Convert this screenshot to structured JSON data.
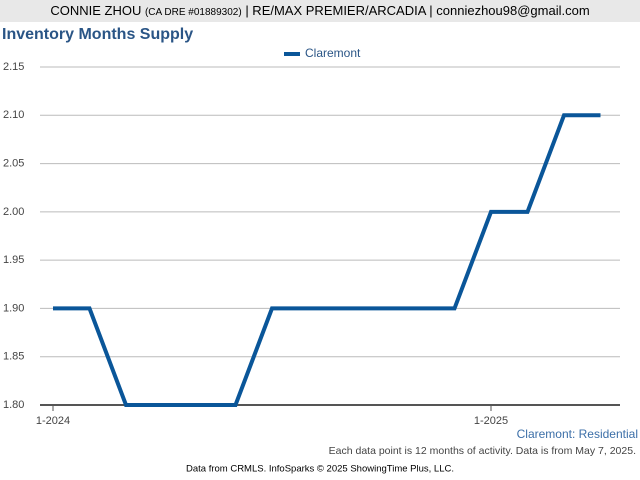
{
  "header": {
    "name": "CONNIE ZHOU",
    "license": "(CA DRE #01889302)",
    "rest": "| RE/MAX PREMIER/ARCADIA | conniezhou98@gmail.com"
  },
  "chart_data": {
    "type": "line",
    "title": "Inventory Months Supply",
    "categories": [
      "1-2024",
      null,
      null,
      null,
      null,
      null,
      null,
      null,
      null,
      null,
      null,
      null,
      "1-2025",
      null,
      null,
      null
    ],
    "series": [
      {
        "name": "Claremont",
        "color": "#0a5699",
        "values": [
          1.9,
          1.9,
          1.8,
          1.8,
          1.8,
          1.8,
          1.9,
          1.9,
          1.9,
          1.9,
          1.9,
          1.9,
          2.0,
          2.0,
          2.1,
          2.1
        ]
      }
    ],
    "ylim": [
      1.8,
      2.15
    ],
    "yticks": [
      {
        "value": 1.8,
        "label": "1.80"
      },
      {
        "value": 1.85,
        "label": "1.85"
      },
      {
        "value": 1.9,
        "label": "1.90"
      },
      {
        "value": 1.95,
        "label": "1.95"
      },
      {
        "value": 2.0,
        "label": "2.00"
      },
      {
        "value": 2.05,
        "label": "2.05"
      },
      {
        "value": 2.1,
        "label": "2.10"
      },
      {
        "value": 2.15,
        "label": "2.15"
      }
    ],
    "grid": true,
    "legend": "top"
  },
  "footer": {
    "subtitle": "Claremont: Residential",
    "note": "Each data point is 12 months of activity. Data is from May 7, 2025.",
    "source": "Data from CRMLS. InfoSparks © 2025 ShowingTime Plus, LLC."
  }
}
